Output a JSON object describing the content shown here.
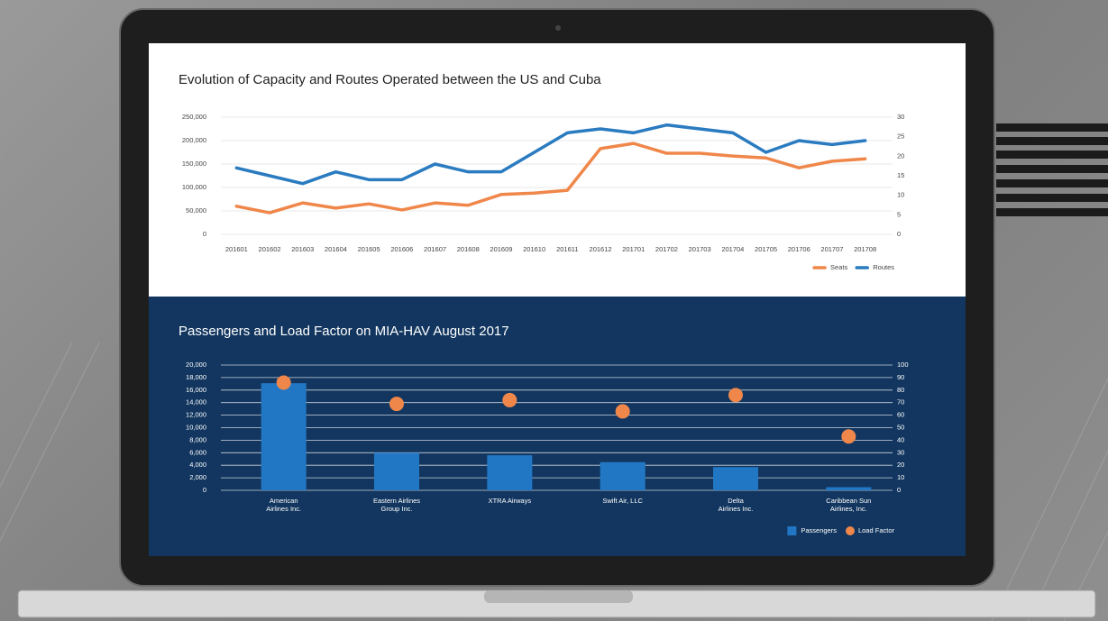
{
  "chart_data": [
    {
      "type": "line",
      "title": "Evolution of Capacity and Routes Operated between the US and Cuba",
      "categories": [
        "201601",
        "201602",
        "201603",
        "201604",
        "201605",
        "201606",
        "201607",
        "201608",
        "201609",
        "201610",
        "201611",
        "201612",
        "201701",
        "201702",
        "201703",
        "201704",
        "201705",
        "201706",
        "201707",
        "201708"
      ],
      "series": [
        {
          "name": "Seats",
          "color": "#f0874a",
          "values": [
            60000,
            46000,
            67000,
            56000,
            65000,
            52000,
            67000,
            62000,
            85000,
            88000,
            94000,
            183000,
            194000,
            173000,
            173000,
            167000,
            163000,
            142000,
            156000,
            161000
          ]
        },
        {
          "name": "Routes",
          "color": "#2a7bc0",
          "axis": "y2",
          "values": [
            17,
            15,
            13,
            16,
            14,
            14,
            18,
            16,
            16,
            21,
            26,
            27,
            26,
            28,
            27,
            26,
            21,
            24,
            23,
            24
          ]
        }
      ],
      "ylim": [
        0,
        250000
      ],
      "yticks": [
        0,
        {
          "value": 50000,
          "label": "50,000"
        },
        {
          "value": 100000,
          "label": "100,000"
        },
        {
          "value": 150000,
          "label": "150,000"
        },
        {
          "value": 200000,
          "label": "200,000"
        },
        {
          "value": 250000,
          "label": "250,000"
        }
      ],
      "y2lim": [
        0,
        30
      ],
      "y2ticks": [
        0,
        5,
        10,
        15,
        20,
        25,
        30
      ],
      "grid": true,
      "legend": "bottom-right"
    },
    {
      "type": "bar",
      "title": "Passengers and Load Factor on MIA-HAV August 2017",
      "categories": [
        "American\nAirlines Inc.",
        "Eastern Airlines\nGroup Inc.",
        "XTRA Airways",
        "Swift Air, LLC",
        "Delta\nAirlines Inc.",
        "Caribbean Sun\nAirlines, Inc."
      ],
      "series": [
        {
          "name": "Passengers",
          "color": "#2277c4",
          "values": [
            17100,
            6000,
            5600,
            4500,
            3700,
            500
          ]
        },
        {
          "name": "Load Factor",
          "color": "#f0874a",
          "type": "scatter",
          "axis": "y2",
          "values": [
            86,
            69,
            72,
            63,
            76,
            43
          ]
        }
      ],
      "ylim": [
        0,
        20000
      ],
      "yticks": [
        0,
        {
          "value": 2000,
          "label": "2,000"
        },
        {
          "value": 4000,
          "label": "4,000"
        },
        {
          "value": 6000,
          "label": "6,000"
        },
        {
          "value": 8000,
          "label": "8,000"
        },
        {
          "value": 10000,
          "label": "10,000"
        },
        {
          "value": 12000,
          "label": "12,000"
        },
        {
          "value": 14000,
          "label": "14,000"
        },
        {
          "value": 16000,
          "label": "16,000"
        },
        {
          "value": 18000,
          "label": "18,000"
        },
        {
          "value": 20000,
          "label": "20,000"
        }
      ],
      "y2lim": [
        0,
        100
      ],
      "y2ticks": [
        0,
        10,
        20,
        30,
        40,
        50,
        60,
        70,
        80,
        90,
        100
      ],
      "grid": true,
      "legend": "bottom-right"
    }
  ]
}
